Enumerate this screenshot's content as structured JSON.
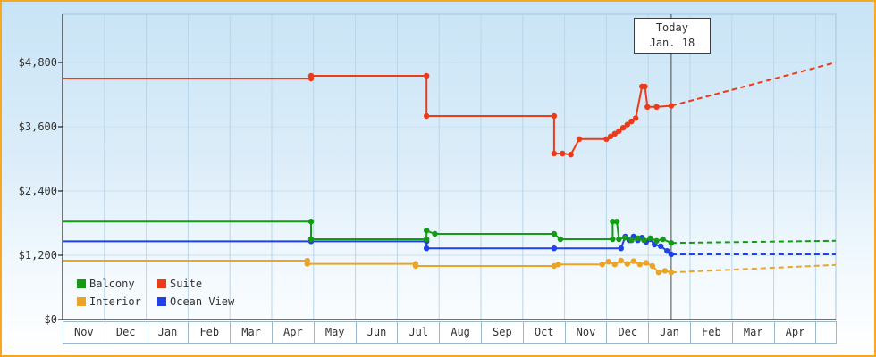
{
  "frame": {
    "border_color": "#f8a722",
    "background_top": "#c8e4f6",
    "background_bottom": "#ffffff"
  },
  "legend": {
    "items": [
      {
        "label": "Balcony",
        "color": "#149a14"
      },
      {
        "label": "Suite",
        "color": "#ed3b1a"
      },
      {
        "label": "Interior",
        "color": "#eba426"
      },
      {
        "label": "Ocean View",
        "color": "#1f41e6"
      }
    ]
  },
  "chart_data": {
    "type": "line",
    "title": "",
    "x_tick_labels": [
      "Nov",
      "Dec",
      "Jan",
      "Feb",
      "Mar",
      "Apr",
      "May",
      "Jun",
      "Jul",
      "Aug",
      "Sep",
      "Oct",
      "Nov",
      "Dec",
      "Jan",
      "Feb",
      "Mar",
      "Apr"
    ],
    "y_tick_labels": [
      "$0",
      "$1,200",
      "$2,400",
      "$3,600",
      "$4,800"
    ],
    "y_tick_values": [
      0,
      1200,
      2400,
      3600,
      4800
    ],
    "ylim": [
      0,
      5700
    ],
    "x_index_range": [
      0,
      18.48
    ],
    "grid": true,
    "legend_position": "bottom-left",
    "today_marker": {
      "month_index": 14.55,
      "label_line1": "Today",
      "label_line2": "Jan. 18"
    },
    "series": [
      {
        "name": "Balcony",
        "color": "#149a14",
        "points": [
          [
            0,
            1830
          ],
          [
            5.94,
            1830
          ],
          [
            5.94,
            1500
          ],
          [
            8.7,
            1500
          ],
          [
            8.7,
            1660
          ],
          [
            8.9,
            1600
          ],
          [
            11.75,
            1600
          ],
          [
            11.9,
            1500
          ],
          [
            13.15,
            1500
          ],
          [
            13.15,
            1830
          ],
          [
            13.25,
            1830
          ],
          [
            13.3,
            1500
          ],
          [
            13.45,
            1530
          ],
          [
            13.6,
            1480
          ],
          [
            13.75,
            1520
          ],
          [
            13.9,
            1480
          ],
          [
            14.05,
            1520
          ],
          [
            14.2,
            1470
          ],
          [
            14.35,
            1500
          ],
          [
            14.55,
            1430
          ]
        ],
        "forecast": [
          [
            14.55,
            1430
          ],
          [
            18.48,
            1470
          ]
        ]
      },
      {
        "name": "Suite",
        "color": "#ed3b1a",
        "points": [
          [
            0,
            4500
          ],
          [
            5.94,
            4500
          ],
          [
            5.94,
            4550
          ],
          [
            8.7,
            4550
          ],
          [
            8.7,
            3800
          ],
          [
            11.75,
            3800
          ],
          [
            11.75,
            3100
          ],
          [
            11.95,
            3100
          ],
          [
            12.15,
            3080
          ],
          [
            12.35,
            3370
          ],
          [
            13.0,
            3370
          ],
          [
            13.1,
            3420
          ],
          [
            13.2,
            3470
          ],
          [
            13.3,
            3520
          ],
          [
            13.4,
            3580
          ],
          [
            13.5,
            3640
          ],
          [
            13.6,
            3700
          ],
          [
            13.7,
            3760
          ],
          [
            13.85,
            4350
          ],
          [
            13.92,
            4350
          ],
          [
            13.98,
            3970
          ],
          [
            14.2,
            3970
          ],
          [
            14.55,
            3990
          ]
        ],
        "forecast": [
          [
            14.55,
            3990
          ],
          [
            18.48,
            4800
          ]
        ]
      },
      {
        "name": "Interior",
        "color": "#eba426",
        "points": [
          [
            0,
            1100
          ],
          [
            5.85,
            1100
          ],
          [
            5.85,
            1040
          ],
          [
            8.44,
            1040
          ],
          [
            8.44,
            1000
          ],
          [
            11.75,
            1000
          ],
          [
            11.85,
            1030
          ],
          [
            12.9,
            1030
          ],
          [
            13.05,
            1080
          ],
          [
            13.2,
            1030
          ],
          [
            13.35,
            1100
          ],
          [
            13.5,
            1040
          ],
          [
            13.65,
            1090
          ],
          [
            13.8,
            1030
          ],
          [
            13.95,
            1060
          ],
          [
            14.1,
            1000
          ],
          [
            14.25,
            880
          ],
          [
            14.4,
            910
          ],
          [
            14.55,
            880
          ]
        ],
        "forecast": [
          [
            14.55,
            880
          ],
          [
            18.48,
            1020
          ]
        ]
      },
      {
        "name": "Ocean View",
        "color": "#1f41e6",
        "points": [
          [
            0,
            1460
          ],
          [
            5.94,
            1460
          ],
          [
            8.7,
            1460
          ],
          [
            8.7,
            1330
          ],
          [
            11.75,
            1330
          ],
          [
            13.35,
            1330
          ],
          [
            13.45,
            1550
          ],
          [
            13.55,
            1480
          ],
          [
            13.65,
            1550
          ],
          [
            13.75,
            1480
          ],
          [
            13.85,
            1530
          ],
          [
            13.95,
            1450
          ],
          [
            14.05,
            1500
          ],
          [
            14.15,
            1400
          ],
          [
            14.3,
            1370
          ],
          [
            14.45,
            1280
          ],
          [
            14.55,
            1216
          ]
        ],
        "forecast": [
          [
            14.55,
            1216
          ],
          [
            18.48,
            1216
          ]
        ]
      }
    ]
  }
}
